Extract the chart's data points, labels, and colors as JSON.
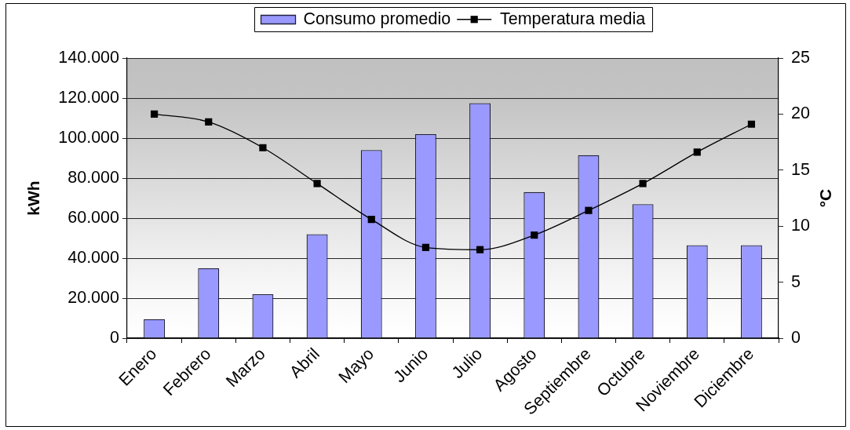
{
  "chart_data": {
    "type": "bar",
    "categories": [
      "Enero",
      "Febrero",
      "Marzo",
      "Abril",
      "Mayo",
      "Junio",
      "Julio",
      "Agosto",
      "Septiembre",
      "Octubre",
      "Noviembre",
      "Diciembre"
    ],
    "series": [
      {
        "name": "Consumo promedio",
        "color": "#9999ff",
        "values": [
          9500,
          35000,
          22000,
          52000,
          94000,
          102000,
          117500,
          73000,
          91500,
          67000,
          46500,
          46500
        ]
      },
      {
        "name": "Temperatura media",
        "type": "line",
        "axis": "y2",
        "color": "#000000",
        "marker": "square",
        "values": [
          20.0,
          19.3,
          17.0,
          13.8,
          10.6,
          8.1,
          7.9,
          9.2,
          11.4,
          13.8,
          16.6,
          19.1
        ]
      }
    ],
    "ylabel": "kWh",
    "y2label": "°C",
    "ylim": [
      0,
      140000
    ],
    "yticks": [
      0,
      {
        "value": 20000,
        "label": "20.000"
      },
      {
        "value": 40000,
        "label": "40.000"
      },
      {
        "value": 60000,
        "label": "60.000"
      },
      {
        "value": 80000,
        "label": "80.000"
      },
      {
        "value": 100000,
        "label": "100.000"
      },
      {
        "value": 120000,
        "label": "120.000"
      },
      {
        "value": 140000,
        "label": "140.000"
      }
    ],
    "y2lim": [
      0,
      25
    ],
    "y2ticks": [
      0,
      5,
      10,
      15,
      20,
      25
    ],
    "grid": "y",
    "legend": "top"
  }
}
